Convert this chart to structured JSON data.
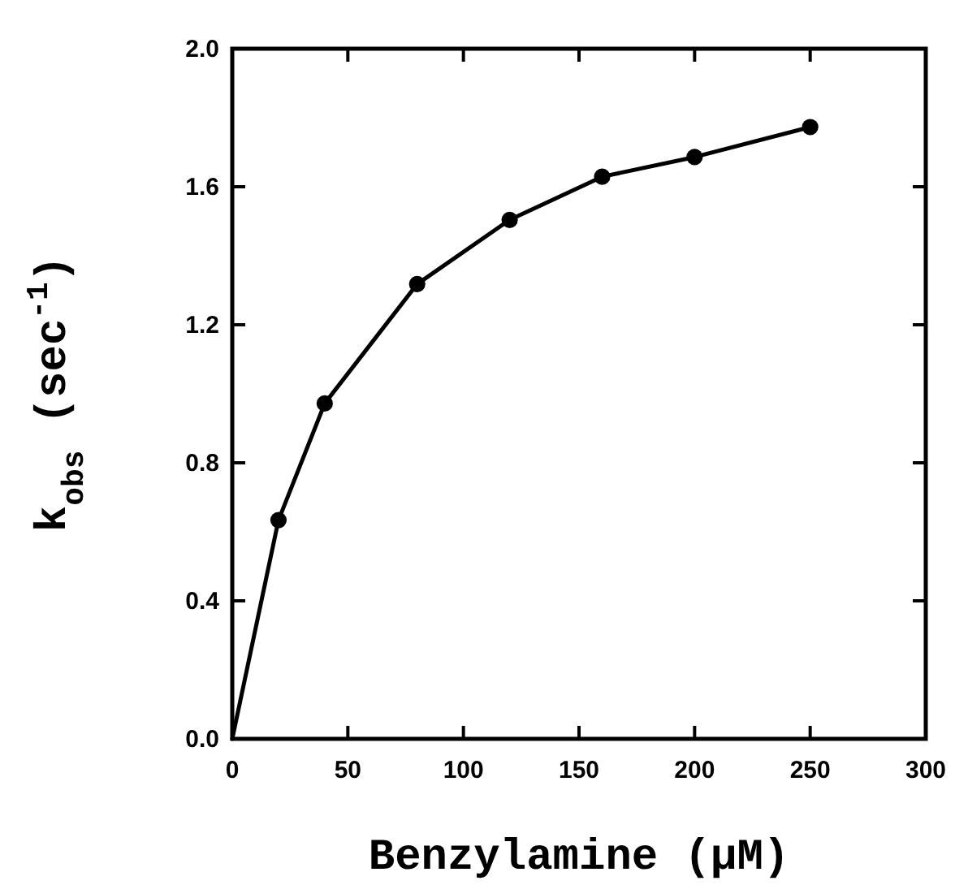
{
  "chart_data": {
    "type": "line",
    "xlabel": "Benzylamine (μM)",
    "ylabel": "k$_{obs}$ (sec$^{-1}$)",
    "xlim": [
      0,
      300
    ],
    "xticks": [
      0,
      50,
      100,
      150,
      200,
      250,
      300
    ],
    "ylim": [
      0,
      2.0
    ],
    "yticks": [
      {
        "value": 0,
        "label": "0.0"
      },
      {
        "value": 0.4,
        "label": "0.4"
      },
      {
        "value": 0.8,
        "label": "0.8"
      },
      {
        "value": 1.2,
        "label": "1.2"
      },
      {
        "value": 1.6,
        "label": "1.6"
      },
      {
        "value": 2.0,
        "label": "2.0"
      }
    ],
    "grid": false,
    "series": [
      {
        "color": "#000000",
        "marker": "none",
        "x": [
          0,
          20,
          40,
          80,
          120,
          160,
          200,
          250
        ],
        "values": [
          0,
          0.634,
          0.972,
          1.318,
          1.504,
          1.629,
          1.686,
          1.773
        ]
      },
      {
        "type": "scatter",
        "color": "#000000",
        "marker": "circle",
        "x": [
          20,
          40,
          80,
          120,
          160,
          200,
          250
        ],
        "values": [
          0.634,
          0.972,
          1.318,
          1.504,
          1.629,
          1.686,
          1.773
        ]
      }
    ]
  }
}
